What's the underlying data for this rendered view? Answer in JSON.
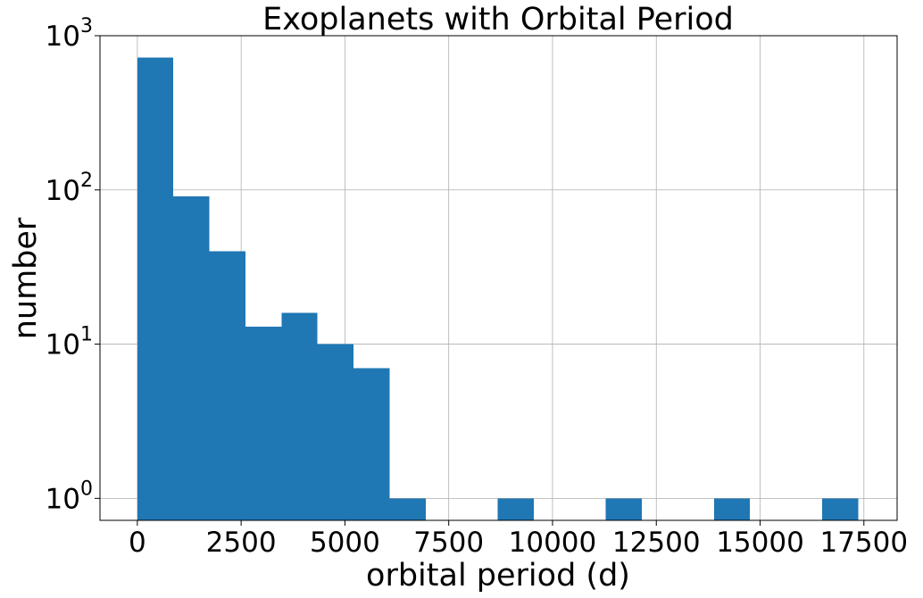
{
  "chart_data": {
    "type": "bar",
    "title": "Exoplanets with Orbital Period",
    "xlabel": "orbital period (d)",
    "ylabel": "number",
    "yscale": "log",
    "grid": true,
    "xlim": [
      -900,
      18300
    ],
    "ylim": [
      0.72,
      1000
    ],
    "xticks": [
      0,
      2500,
      5000,
      7500,
      10000,
      12500,
      15000,
      17500
    ],
    "xtick_labels": [
      "0",
      "2500",
      "5000",
      "7500",
      "10000",
      "12500",
      "15000",
      "17500"
    ],
    "yticks": [
      1,
      10,
      100,
      1000
    ],
    "ytick_labels": [
      {
        "base": "10",
        "exp": "0"
      },
      {
        "base": "10",
        "exp": "1"
      },
      {
        "base": "10",
        "exp": "2"
      },
      {
        "base": "10",
        "exp": "3"
      }
    ],
    "color": "#1f77b4",
    "bins": [
      {
        "x0": 0,
        "x1": 868,
        "count": 720
      },
      {
        "x0": 868,
        "x1": 1736,
        "count": 91
      },
      {
        "x0": 1736,
        "x1": 2604,
        "count": 40
      },
      {
        "x0": 2604,
        "x1": 3472,
        "count": 13
      },
      {
        "x0": 3472,
        "x1": 4340,
        "count": 16
      },
      {
        "x0": 4340,
        "x1": 5208,
        "count": 10
      },
      {
        "x0": 5208,
        "x1": 6076,
        "count": 7
      },
      {
        "x0": 6076,
        "x1": 6944,
        "count": 1
      },
      {
        "x0": 6944,
        "x1": 7812,
        "count": 0
      },
      {
        "x0": 7812,
        "x1": 8680,
        "count": 0
      },
      {
        "x0": 8680,
        "x1": 9548,
        "count": 1
      },
      {
        "x0": 9548,
        "x1": 10416,
        "count": 0
      },
      {
        "x0": 10416,
        "x1": 11284,
        "count": 0
      },
      {
        "x0": 11284,
        "x1": 12152,
        "count": 1
      },
      {
        "x0": 12152,
        "x1": 13020,
        "count": 0
      },
      {
        "x0": 13020,
        "x1": 13888,
        "count": 0
      },
      {
        "x0": 13888,
        "x1": 14756,
        "count": 1
      },
      {
        "x0": 14756,
        "x1": 15624,
        "count": 0
      },
      {
        "x0": 15624,
        "x1": 16492,
        "count": 0
      },
      {
        "x0": 16492,
        "x1": 17360,
        "count": 1
      }
    ]
  }
}
